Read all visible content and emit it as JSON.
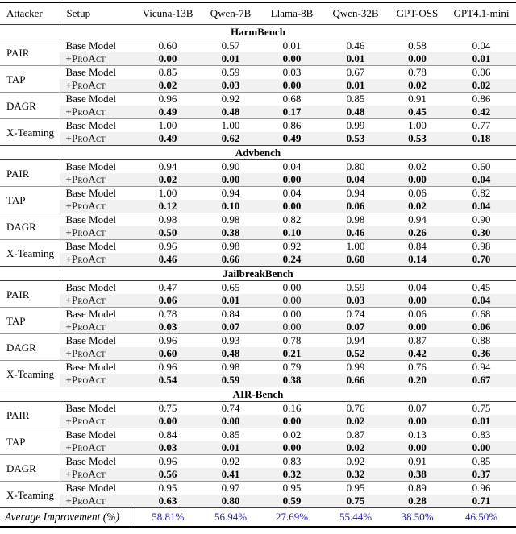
{
  "colors": {
    "accent_blue": "#1c1ccd",
    "row_highlight": "#f1f1f1",
    "rule_dark": "#000000",
    "rule_light": "#979797"
  },
  "table": {
    "columns": [
      "Attacker",
      "Setup",
      "Vicuna-13B",
      "Qwen-7B",
      "Llama-8B",
      "Qwen-32B",
      "GPT-OSS",
      "GPT4.1-mini"
    ],
    "row_labels": {
      "base": "Base Model",
      "proact": "+ProAct"
    },
    "sections": [
      {
        "title": "HarmBench",
        "groups": [
          {
            "attacker": "PAIR",
            "base": [
              "0.60",
              "0.57",
              "0.01",
              "0.46",
              "0.58",
              "0.04"
            ],
            "proact": [
              "0.00",
              "0.01",
              "0.00",
              "0.01",
              "0.00",
              "0.01"
            ],
            "proact_plain": []
          },
          {
            "attacker": "TAP",
            "base": [
              "0.85",
              "0.59",
              "0.03",
              "0.67",
              "0.78",
              "0.06"
            ],
            "proact": [
              "0.02",
              "0.03",
              "0.00",
              "0.01",
              "0.02",
              "0.02"
            ],
            "proact_plain": []
          },
          {
            "attacker": "DAGR",
            "base": [
              "0.96",
              "0.92",
              "0.68",
              "0.85",
              "0.91",
              "0.86"
            ],
            "proact": [
              "0.49",
              "0.48",
              "0.17",
              "0.48",
              "0.45",
              "0.42"
            ],
            "proact_plain": []
          },
          {
            "attacker": "X-Teaming",
            "base": [
              "1.00",
              "1.00",
              "0.86",
              "0.99",
              "1.00",
              "0.77"
            ],
            "proact": [
              "0.49",
              "0.62",
              "0.49",
              "0.53",
              "0.53",
              "0.18"
            ],
            "proact_plain": []
          }
        ]
      },
      {
        "title": "Advbench",
        "groups": [
          {
            "attacker": "PAIR",
            "base": [
              "0.94",
              "0.90",
              "0.04",
              "0.80",
              "0.02",
              "0.60"
            ],
            "proact": [
              "0.02",
              "0.00",
              "0.00",
              "0.04",
              "0.00",
              "0.04"
            ],
            "proact_plain": []
          },
          {
            "attacker": "TAP",
            "base": [
              "1.00",
              "0.94",
              "0.04",
              "0.94",
              "0.06",
              "0.82"
            ],
            "proact": [
              "0.12",
              "0.10",
              "0.00",
              "0.06",
              "0.02",
              "0.04"
            ],
            "proact_plain": []
          },
          {
            "attacker": "DAGR",
            "base": [
              "0.98",
              "0.98",
              "0.82",
              "0.98",
              "0.94",
              "0.90"
            ],
            "proact": [
              "0.50",
              "0.38",
              "0.10",
              "0.46",
              "0.26",
              "0.30"
            ],
            "proact_plain": []
          },
          {
            "attacker": "X-Teaming",
            "base": [
              "0.96",
              "0.98",
              "0.92",
              "1.00",
              "0.84",
              "0.98"
            ],
            "proact": [
              "0.46",
              "0.66",
              "0.24",
              "0.60",
              "0.14",
              "0.70"
            ],
            "proact_plain": []
          }
        ]
      },
      {
        "title": "JailbreakBench",
        "groups": [
          {
            "attacker": "PAIR",
            "base": [
              "0.47",
              "0.65",
              "0.00",
              "0.59",
              "0.04",
              "0.45"
            ],
            "proact": [
              "0.06",
              "0.01",
              "0.00",
              "0.03",
              "0.00",
              "0.04"
            ],
            "proact_plain": [
              2
            ]
          },
          {
            "attacker": "TAP",
            "base": [
              "0.78",
              "0.84",
              "0.00",
              "0.74",
              "0.06",
              "0.68"
            ],
            "proact": [
              "0.03",
              "0.07",
              "0.00",
              "0.07",
              "0.00",
              "0.06"
            ],
            "proact_plain": [
              2
            ]
          },
          {
            "attacker": "DAGR",
            "base": [
              "0.96",
              "0.93",
              "0.78",
              "0.94",
              "0.87",
              "0.88"
            ],
            "proact": [
              "0.60",
              "0.48",
              "0.21",
              "0.52",
              "0.42",
              "0.36"
            ],
            "proact_plain": []
          },
          {
            "attacker": "X-Teaming",
            "base": [
              "0.96",
              "0.98",
              "0.79",
              "0.99",
              "0.76",
              "0.94"
            ],
            "proact": [
              "0.54",
              "0.59",
              "0.38",
              "0.66",
              "0.20",
              "0.67"
            ],
            "proact_plain": []
          }
        ]
      },
      {
        "title": "AIR-Bench",
        "groups": [
          {
            "attacker": "PAIR",
            "base": [
              "0.75",
              "0.74",
              "0.16",
              "0.76",
              "0.07",
              "0.75"
            ],
            "proact": [
              "0.00",
              "0.00",
              "0.00",
              "0.02",
              "0.00",
              "0.01"
            ],
            "proact_plain": []
          },
          {
            "attacker": "TAP",
            "base": [
              "0.84",
              "0.85",
              "0.02",
              "0.87",
              "0.13",
              "0.83"
            ],
            "proact": [
              "0.03",
              "0.01",
              "0.00",
              "0.02",
              "0.00",
              "0.00"
            ],
            "proact_plain": []
          },
          {
            "attacker": "DAGR",
            "base": [
              "0.96",
              "0.92",
              "0.83",
              "0.92",
              "0.91",
              "0.85"
            ],
            "proact": [
              "0.56",
              "0.41",
              "0.32",
              "0.32",
              "0.38",
              "0.37"
            ],
            "proact_plain": []
          },
          {
            "attacker": "X-Teaming",
            "base": [
              "0.95",
              "0.97",
              "0.95",
              "0.95",
              "0.89",
              "0.96"
            ],
            "proact": [
              "0.63",
              "0.80",
              "0.59",
              "0.75",
              "0.28",
              "0.71"
            ],
            "proact_plain": []
          }
        ]
      }
    ],
    "footer": {
      "label": "Average Improvement (%)",
      "values": [
        "58.81%",
        "56.94%",
        "27.69%",
        "55.44%",
        "38.50%",
        "46.50%"
      ]
    }
  }
}
